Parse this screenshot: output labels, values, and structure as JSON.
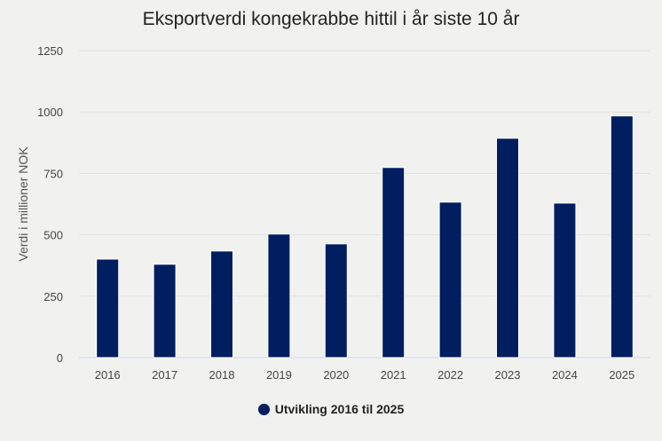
{
  "chart_data": {
    "type": "bar",
    "title": "Eksportverdi kongekrabbe hittil i år siste 10 år",
    "xlabel": "",
    "ylabel": "Verdi i millioner NOK",
    "ylim": [
      0,
      1250
    ],
    "yticks": [
      0,
      250,
      500,
      750,
      1000,
      1250
    ],
    "grid": true,
    "legend_position": "bottom",
    "categories": [
      "2016",
      "2017",
      "2018",
      "2019",
      "2020",
      "2021",
      "2022",
      "2023",
      "2024",
      "2025"
    ],
    "series": [
      {
        "name": "Utvikling 2016 til 2025",
        "color": "#001e60",
        "values": [
          401,
          380,
          434,
          503,
          463,
          774,
          633,
          893,
          629,
          984
        ]
      }
    ]
  }
}
